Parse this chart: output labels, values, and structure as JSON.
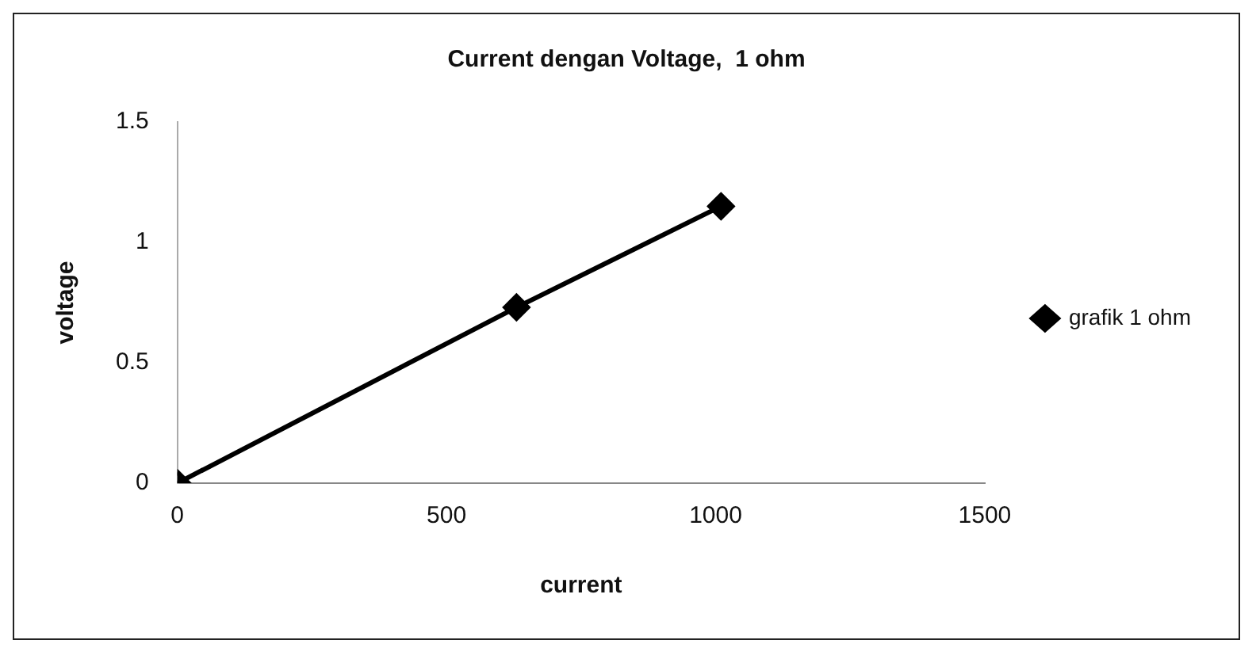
{
  "chart_data": {
    "type": "line",
    "title": "Current dengan Voltage,  1 ohm",
    "xlabel": "current",
    "ylabel": "voltage",
    "x": [
      0,
      630,
      1010
    ],
    "series": [
      {
        "name": "grafik 1 ohm",
        "color": "#000000",
        "values": [
          0,
          0.73,
          1.15
        ]
      }
    ],
    "xlim": [
      0,
      1500
    ],
    "xticks": [
      0,
      500,
      1000,
      1500
    ],
    "ylim": [
      0,
      1.5
    ],
    "yticks": [
      0,
      0.5,
      1,
      1.5
    ],
    "grid": false,
    "legend": "right",
    "marker": "diamond",
    "line_style": "solid"
  }
}
